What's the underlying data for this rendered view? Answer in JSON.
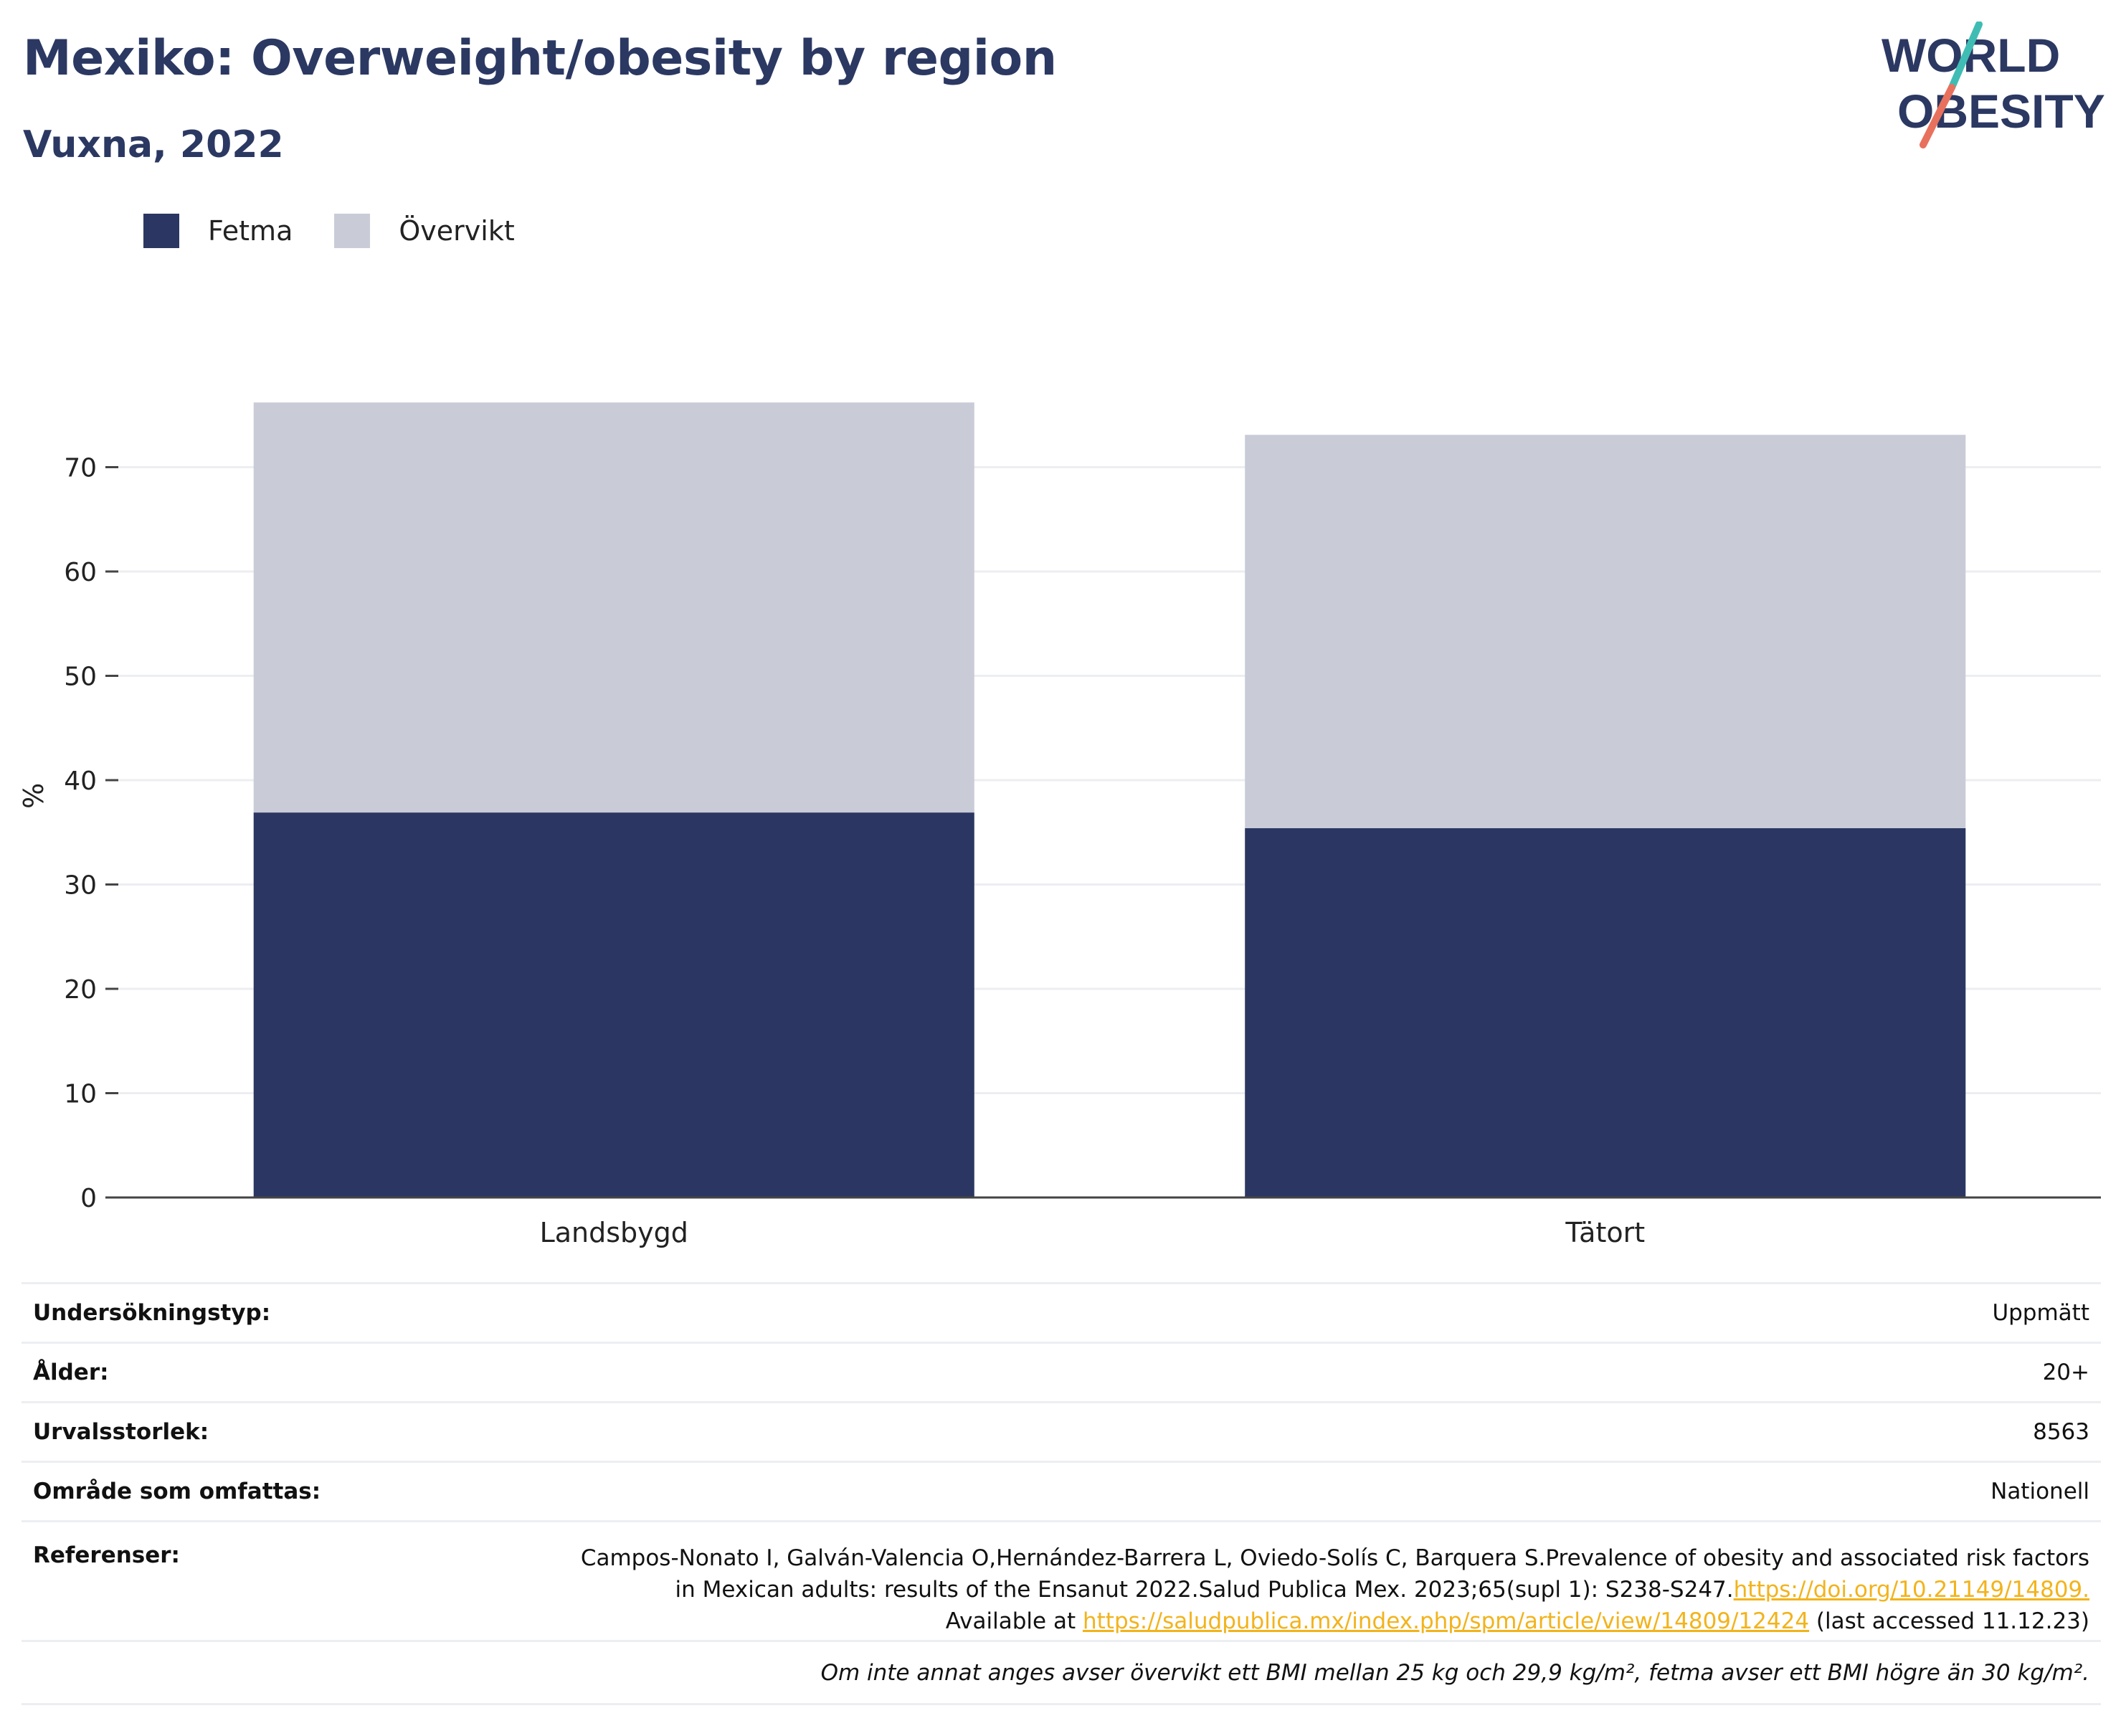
{
  "header": {
    "title": "Mexiko: Overweight/obesity by region",
    "subtitle": "Vuxna, 2022"
  },
  "logo": {
    "line1": "WORLD",
    "line2": "OBESITY"
  },
  "colors": {
    "fetma": "#2b3762",
    "overvikt": "#c9ccd7",
    "title": "#2b3862",
    "link": "#f2b31c",
    "logo_teal": "#3fbdb4",
    "logo_coral": "#e8715d"
  },
  "legend": [
    {
      "label": "Fetma",
      "color": "#2b3762"
    },
    {
      "label": "Övervikt",
      "color": "#c9ccd7"
    }
  ],
  "chart_data": {
    "type": "bar",
    "stacked": true,
    "categories": [
      "Landsbygd",
      "Tätort"
    ],
    "series": [
      {
        "name": "Fetma",
        "values": [
          36.9,
          35.4
        ]
      },
      {
        "name": "Övervikt",
        "values": [
          39.3,
          37.7
        ]
      }
    ],
    "ylabel": "%",
    "ylim": [
      0,
      80
    ],
    "yticks": [
      0,
      10,
      20,
      30,
      40,
      50,
      60,
      70
    ],
    "grid": true,
    "legend_position": "top-left"
  },
  "meta": {
    "survey_type": {
      "key": "Undersökningstyp:",
      "value": "Uppmätt"
    },
    "age": {
      "key": "Ålder:",
      "value": "20+"
    },
    "sample_size": {
      "key": "Urvalsstorlek:",
      "value": "8563"
    },
    "area": {
      "key": "Område som omfattas:",
      "value": "Nationell"
    },
    "references": {
      "key": "Referenser:",
      "line1": "Campos-Nonato I, Galván-Valencia O,Hernández-Barrera L, Oviedo-Solís C, Barquera S.Prevalence of obesity and associated risk factors",
      "line2": "in Mexican adults: results of the Ensanut 2022.Salud Publica Mex. 2023;65(supl 1): S238-S247.",
      "link1": "https://doi.org/10.21149/14809.",
      "line3": "Available at ",
      "link2": "https://saludpublica.mx/index.php/spm/article/view/14809/12424",
      "line3_end": " (last accessed 11.12.23)"
    },
    "note": "Om inte annat anges avser övervikt ett BMI mellan 25 kg och 29,9 kg/m², fetma avser ett BMI högre än 30 kg/m²."
  }
}
